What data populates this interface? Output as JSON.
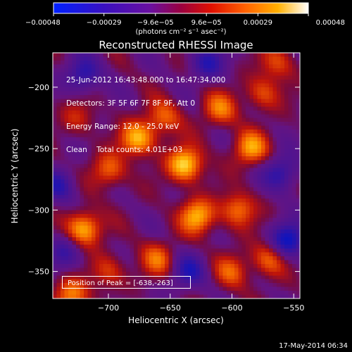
{
  "chart_data": {
    "type": "heatmap",
    "title": "Reconstructed RHESSI Image",
    "xlabel": "Heliocentric X (arcsec)",
    "ylabel": "Heliocentric Y (arcsec)",
    "xlim": [
      -745,
      -545
    ],
    "ylim": [
      -372,
      -172
    ],
    "x_ticks": [
      -700,
      -650,
      -600,
      -550
    ],
    "x_tick_labels": [
      "−700",
      "−650",
      "−600",
      "−550"
    ],
    "y_ticks": [
      -350,
      -300,
      -250,
      -200
    ],
    "y_tick_labels": [
      "−350",
      "−300",
      "−250",
      "−200"
    ],
    "colorbar": {
      "colormap": "hot-blue (blue-purple-red-orange-yellow-white)",
      "range": [
        -0.00048,
        0.00048
      ],
      "ticks": [
        -0.00048,
        -0.00029,
        -9.6e-05,
        9.6e-05,
        0.00029,
        0.00048
      ],
      "tick_labels": [
        "−0.00048",
        "−0.00029",
        "−9.6e−05",
        "9.6e−05",
        "0.00029",
        "0.00048"
      ],
      "units": "(photons cm⁻² s⁻¹ asec⁻²)"
    },
    "annotations": [
      "25-Jun-2012 16:43:48.000 to 16:47:34.000",
      "Detectors: 3F 5F 6F 7F 8F 9F, Att 0",
      "Energy Range: 12.0 - 25.0 keV",
      "Clean    Total counts: 4.01E+03"
    ],
    "peak_label": "Position of Peak = [-638,-263]",
    "peak_position": [
      -638,
      -263
    ],
    "bright_sources": [
      {
        "x": -638,
        "y": -263,
        "intensity": 1.0
      },
      {
        "x": -676,
        "y": -242,
        "intensity": 0.85
      },
      {
        "x": -720,
        "y": -315,
        "intensity": 0.9
      },
      {
        "x": -628,
        "y": -305,
        "intensity": 0.85
      },
      {
        "x": -585,
        "y": -250,
        "intensity": 0.75
      },
      {
        "x": -700,
        "y": -268,
        "intensity": 0.6
      },
      {
        "x": -655,
        "y": -225,
        "intensity": 0.55
      },
      {
        "x": -610,
        "y": -218,
        "intensity": 0.6
      },
      {
        "x": -595,
        "y": -300,
        "intensity": 0.65
      },
      {
        "x": -570,
        "y": -340,
        "intensity": 0.6
      },
      {
        "x": -660,
        "y": -340,
        "intensity": 0.55
      },
      {
        "x": -700,
        "y": -350,
        "intensity": 0.45
      },
      {
        "x": -730,
        "y": -370,
        "intensity": 0.7
      },
      {
        "x": -600,
        "y": -350,
        "intensity": 0.5
      },
      {
        "x": -563,
        "y": -180,
        "intensity": 0.45
      },
      {
        "x": -725,
        "y": -225,
        "intensity": 0.35
      },
      {
        "x": -575,
        "y": -205,
        "intensity": 0.5
      }
    ],
    "dark_sources": [
      {
        "x": -720,
        "y": -190,
        "intensity": -0.6
      },
      {
        "x": -555,
        "y": -325,
        "intensity": -0.8
      },
      {
        "x": -560,
        "y": -270,
        "intensity": -0.6
      },
      {
        "x": -690,
        "y": -395,
        "intensity": -0.5
      },
      {
        "x": -740,
        "y": -280,
        "intensity": -0.5
      },
      {
        "x": -620,
        "y": -180,
        "intensity": -0.55
      },
      {
        "x": -635,
        "y": -350,
        "intensity": -0.55
      },
      {
        "x": -735,
        "y": -335,
        "intensity": -0.45
      }
    ]
  },
  "timestamp": "17-May-2014 06:34"
}
